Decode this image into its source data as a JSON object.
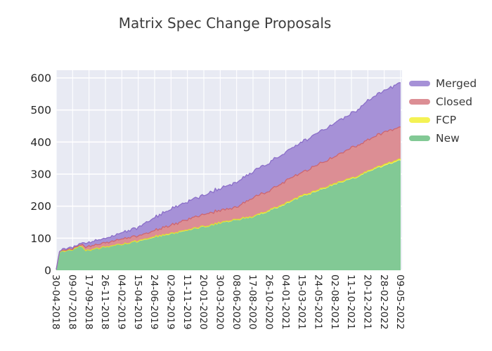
{
  "chart_data": {
    "type": "area",
    "stacked": true,
    "title": "Matrix Spec Change Proposals",
    "xlabel": "",
    "ylabel": "",
    "ylim": [
      0,
      624
    ],
    "grid": true,
    "legend_position": "right-top",
    "y_ticks": [
      0,
      100,
      200,
      300,
      400,
      500,
      600
    ],
    "x_tick_labels": [
      "30-04-2018",
      "09-07-2018",
      "17-09-2018",
      "26-11-2018",
      "04-02-2019",
      "15-04-2019",
      "24-06-2019",
      "02-09-2019",
      "11-11-2019",
      "20-01-2020",
      "30-03-2020",
      "08-06-2020",
      "17-08-2020",
      "26-10-2020",
      "04-01-2021",
      "15-03-2021",
      "24-05-2021",
      "02-08-2021",
      "11-10-2021",
      "20-12-2021",
      "28-02-2022",
      "09-05-2022"
    ],
    "legend": [
      {
        "label": "Merged",
        "key": "merged",
        "fill": "#a691d7",
        "stroke": "#8b6fc9"
      },
      {
        "label": "Closed",
        "key": "closed",
        "fill": "#dc8e94",
        "stroke": "#cd6670"
      },
      {
        "label": "FCP",
        "key": "fcp",
        "fill": "#f4f254",
        "stroke": "#dfdc30"
      },
      {
        "label": "New",
        "key": "new",
        "fill": "#82c995",
        "stroke": "#82c995"
      }
    ],
    "stack_order_bottom_to_top": [
      "new",
      "fcp",
      "closed",
      "merged"
    ],
    "series": [
      {
        "date": "30-04-2018",
        "new": 2,
        "fcp": 0,
        "closed": 0,
        "merged": 0
      },
      {
        "date": "14-05-2018",
        "new": 55,
        "fcp": 1,
        "closed": 2,
        "merged": 2
      },
      {
        "date": "09-07-2018",
        "new": 65,
        "fcp": 1,
        "closed": 3,
        "merged": 5
      },
      {
        "date": "13-08-2018",
        "new": 76,
        "fcp": 1,
        "closed": 4,
        "merged": 5
      },
      {
        "date": "03-09-2018",
        "new": 60,
        "fcp": 1,
        "closed": 12,
        "merged": 13
      },
      {
        "date": "17-09-2018",
        "new": 63,
        "fcp": 1,
        "closed": 12,
        "merged": 13
      },
      {
        "date": "29-10-2018",
        "new": 68,
        "fcp": 1,
        "closed": 12,
        "merged": 14
      },
      {
        "date": "26-11-2018",
        "new": 72,
        "fcp": 1,
        "closed": 13,
        "merged": 15
      },
      {
        "date": "04-02-2019",
        "new": 80,
        "fcp": 1,
        "closed": 16,
        "merged": 18
      },
      {
        "date": "15-04-2019",
        "new": 90,
        "fcp": 2,
        "closed": 17,
        "merged": 26
      },
      {
        "date": "20-05-2019",
        "new": 97,
        "fcp": 2,
        "closed": 17,
        "merged": 33
      },
      {
        "date": "24-06-2019",
        "new": 104,
        "fcp": 2,
        "closed": 18,
        "merged": 41
      },
      {
        "date": "02-09-2019",
        "new": 112,
        "fcp": 2,
        "closed": 26,
        "merged": 50
      },
      {
        "date": "11-11-2019",
        "new": 125,
        "fcp": 2,
        "closed": 33,
        "merged": 55
      },
      {
        "date": "20-01-2020",
        "new": 135,
        "fcp": 2,
        "closed": 38,
        "merged": 60
      },
      {
        "date": "30-03-2020",
        "new": 147,
        "fcp": 2,
        "closed": 38,
        "merged": 68
      },
      {
        "date": "08-06-2020",
        "new": 157,
        "fcp": 2,
        "closed": 38,
        "merged": 78
      },
      {
        "date": "17-08-2020",
        "new": 166,
        "fcp": 2,
        "closed": 59,
        "merged": 82
      },
      {
        "date": "26-10-2020",
        "new": 185,
        "fcp": 3,
        "closed": 60,
        "merged": 87
      },
      {
        "date": "04-01-2021",
        "new": 207,
        "fcp": 3,
        "closed": 70,
        "merged": 90
      },
      {
        "date": "15-03-2021",
        "new": 230,
        "fcp": 3,
        "closed": 72,
        "merged": 95
      },
      {
        "date": "24-05-2021",
        "new": 248,
        "fcp": 3,
        "closed": 79,
        "merged": 100
      },
      {
        "date": "02-08-2021",
        "new": 268,
        "fcp": 3,
        "closed": 84,
        "merged": 105
      },
      {
        "date": "11-10-2021",
        "new": 283,
        "fcp": 3,
        "closed": 95,
        "merged": 107
      },
      {
        "date": "20-12-2021",
        "new": 306,
        "fcp": 3,
        "closed": 97,
        "merged": 121
      },
      {
        "date": "28-02-2022",
        "new": 327,
        "fcp": 4,
        "closed": 101,
        "merged": 130
      },
      {
        "date": "09-05-2022",
        "new": 342,
        "fcp": 4,
        "closed": 101,
        "merged": 138
      }
    ],
    "colors": {
      "plot_bg": "#e8eaf3",
      "grid": "#ffffff",
      "tick": "#262626",
      "title": "#3d3d3d"
    }
  }
}
